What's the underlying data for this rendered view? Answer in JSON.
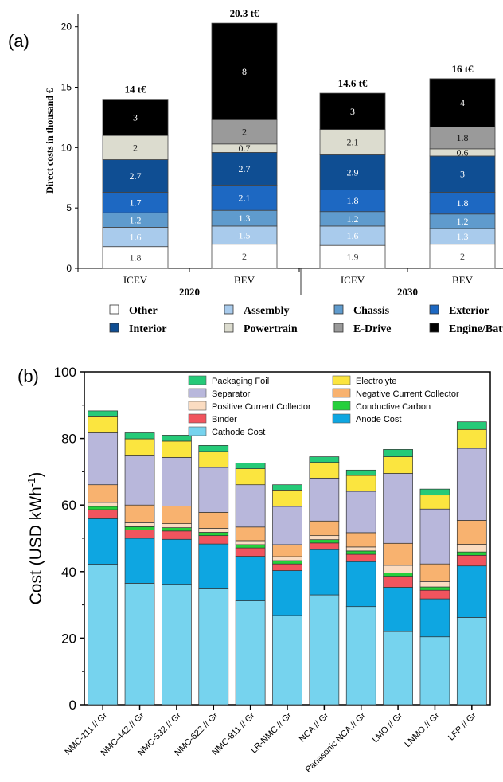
{
  "panels": {
    "a_label": "(a)",
    "b_label": "(b)"
  },
  "chart_data": [
    {
      "type": "bar",
      "stacked": true,
      "ylabel": "Direct costs in thousand €",
      "ylim": [
        0,
        20
      ],
      "yticks": [
        "0",
        "5",
        "10",
        "15",
        "20"
      ],
      "categories": [
        "ICEV",
        "BEV",
        "ICEV",
        "BEV"
      ],
      "groups": [
        "2020",
        "2030"
      ],
      "totals": [
        "14 t€",
        "20.3 t€",
        "14.6 t€",
        "16 t€"
      ],
      "series": [
        {
          "name": "Other",
          "color": "#ffffff",
          "label_color": "#444444",
          "values": [
            1.8,
            2,
            1.9,
            2
          ],
          "labels": [
            "1.8",
            "2",
            "1.9",
            "2"
          ]
        },
        {
          "name": "Assembly",
          "color": "#a9cbec",
          "label_color": "#ffffff",
          "values": [
            1.6,
            1.5,
            1.6,
            1.3
          ],
          "labels": [
            "1.6",
            "1.5",
            "1.6",
            "1.3"
          ]
        },
        {
          "name": "Chassis",
          "color": "#5f9bcd",
          "label_color": "#ffffff",
          "values": [
            1.2,
            1.3,
            1.2,
            1.2
          ],
          "labels": [
            "1.2",
            "1.3",
            "1.2",
            "1.2"
          ]
        },
        {
          "name": "Exterior",
          "color": "#1d68c2",
          "label_color": "#ffffff",
          "values": [
            1.7,
            2.1,
            1.8,
            1.8
          ],
          "labels": [
            "1.7",
            "2.1",
            "1.8",
            "1.8"
          ]
        },
        {
          "name": "Interior",
          "color": "#0f4e93",
          "label_color": "#ffffff",
          "values": [
            2.7,
            2.7,
            2.9,
            3
          ],
          "labels": [
            "2.7",
            "2.7",
            "2.9",
            "3"
          ]
        },
        {
          "name": "Powertrain",
          "color": "#dcdccf",
          "label_color": "#222222",
          "values": [
            2,
            0.7,
            2.1,
            0.6
          ],
          "labels": [
            "2",
            "0.7",
            "2.1",
            "0.6"
          ]
        },
        {
          "name": "E-Drive",
          "color": "#9a9a9a",
          "label_color": "#111111",
          "values": [
            0,
            2,
            0,
            1.8
          ],
          "labels": [
            "",
            "2",
            "",
            "1.8"
          ]
        },
        {
          "name": "Engine/Battery",
          "color": "#000000",
          "label_color": "#ffffff",
          "values": [
            3,
            8,
            3,
            4
          ],
          "labels": [
            "3",
            "8",
            "3",
            "4"
          ]
        }
      ],
      "legend": [
        "Other",
        "Assembly",
        "Chassis",
        "Exterior",
        "Interior",
        "Powertrain",
        "E-Drive",
        "Engine/Battery"
      ]
    },
    {
      "type": "bar",
      "stacked": true,
      "ylabel": "Cost (USD kWh",
      "ylabel_sup": "-1",
      "ylabel_close": ")",
      "ylim": [
        0,
        100
      ],
      "yticks": [
        "0",
        "20",
        "40",
        "60",
        "80",
        "100"
      ],
      "categories": [
        "NMC-111 // Gr",
        "NMC-442 // Gr",
        "NMC-532 // Gr",
        "NMC-622 // Gr",
        "NMC-811 // Gr",
        "LR-NMC // Gr",
        "NCA // Gr",
        "Panasonic NCA // Gr",
        "LMO // Gr",
        "LNMO // Gr",
        "LFP // Gr"
      ],
      "series": [
        {
          "name": "Cathode Cost",
          "color": "#76d3ee",
          "values": [
            42.2,
            36.5,
            36.2,
            34.8,
            31.2,
            26.8,
            33.0,
            29.5,
            22.0,
            20.4,
            26.2
          ]
        },
        {
          "name": "Anode Cost",
          "color": "#0ea6e1",
          "values": [
            13.7,
            13.5,
            13.5,
            13.5,
            13.4,
            13.5,
            13.6,
            13.5,
            13.3,
            11.4,
            15.5
          ]
        },
        {
          "name": "Binder",
          "color": "#f1545e",
          "values": [
            2.7,
            2.5,
            2.5,
            2.5,
            2.5,
            2.0,
            2.0,
            2.2,
            3.3,
            2.6,
            3.2
          ]
        },
        {
          "name": "Conductive Carbon",
          "color": "#25cf3b",
          "values": [
            1.0,
            1.0,
            1.0,
            1.0,
            1.0,
            1.0,
            1.0,
            1.0,
            1.0,
            1.0,
            1.0
          ]
        },
        {
          "name": "Positive Current Collector",
          "color": "#fbdcc1",
          "values": [
            1.2,
            1.2,
            1.2,
            1.2,
            1.2,
            1.2,
            1.2,
            1.2,
            2.3,
            1.6,
            2.3
          ]
        },
        {
          "name": "Negative Current Collector",
          "color": "#f8b26f",
          "values": [
            5.3,
            5.3,
            5.3,
            4.8,
            4.1,
            3.6,
            4.4,
            4.3,
            6.6,
            5.3,
            7.2
          ]
        },
        {
          "name": "Separator",
          "color": "#b8b7db",
          "values": [
            15.6,
            15.0,
            14.6,
            13.5,
            12.7,
            11.5,
            12.9,
            12.4,
            21.0,
            16.5,
            21.6
          ]
        },
        {
          "name": "Electrolyte",
          "color": "#fbe53f",
          "values": [
            4.8,
            4.9,
            4.9,
            4.8,
            4.8,
            4.9,
            4.7,
            4.8,
            5.0,
            4.2,
            5.7
          ]
        },
        {
          "name": "Packaging Foil",
          "color": "#25ca78",
          "values": [
            1.8,
            1.8,
            1.8,
            1.8,
            1.7,
            1.6,
            1.7,
            1.6,
            2.2,
            1.8,
            2.3
          ]
        }
      ],
      "legend": [
        "Packaging Foil",
        "Electrolyte",
        "Separator",
        "Negative Current Collector",
        "Positive Current Collector",
        "Conductive Carbon",
        "Binder",
        "Anode Cost",
        "Cathode Cost"
      ]
    }
  ]
}
